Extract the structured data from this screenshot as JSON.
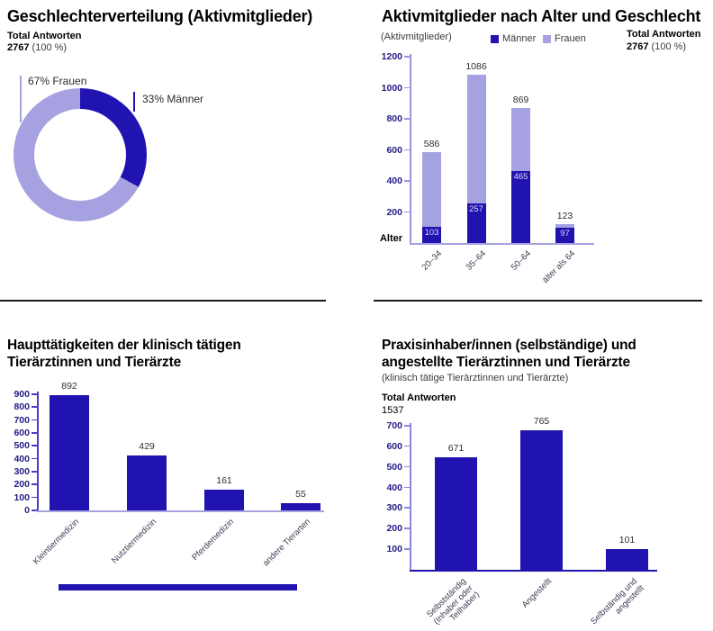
{
  "colors": {
    "primary_dark_blue": "#2013b0",
    "secondary_light_purple": "#a6a1e0",
    "axis_purple": "#8d87dc",
    "axis_blue": "#4a3fc4",
    "tick_label_navy": "#221b87",
    "value_label_gray": "#2e2e2e",
    "divider_black": "#1a1a1a"
  },
  "chart_data": [
    {
      "type": "pie",
      "style": "donut",
      "title": "Geschlechterverteilung (Aktivmitglieder)",
      "total_label": "Total Antworten",
      "total_value": "2767",
      "total_suffix": "(100 %)",
      "start_angle_deg": 0,
      "direction": "clockwise",
      "slices": [
        {
          "name": "Männer",
          "pct": 33,
          "label": "33% Männer",
          "color": "#2013b0"
        },
        {
          "name": "Frauen",
          "pct": 67,
          "label": "67% Frauen",
          "color": "#a6a1e0"
        }
      ]
    },
    {
      "type": "bar",
      "stacked": true,
      "title": "Aktivmitglieder nach Alter und Geschlecht",
      "subtitle": "(Aktivmitglieder)",
      "total_label": "Total Antworten",
      "total_value": "2767",
      "total_suffix": "(100 %)",
      "xlabel": "Alter",
      "legend": [
        {
          "name": "Männer",
          "color": "#2013b0"
        },
        {
          "name": "Frauen",
          "color": "#a6a1e0"
        }
      ],
      "categories": [
        "20–34",
        "35–64",
        "50–64",
        "älter als 64"
      ],
      "series": [
        {
          "name": "Männer",
          "values": [
            103,
            257,
            465,
            97
          ]
        },
        {
          "name": "Frauen",
          "values": [
            483,
            829,
            404,
            26
          ]
        }
      ],
      "totals": [
        586,
        1086,
        869,
        123
      ],
      "ylim": [
        0,
        1200
      ],
      "yticks": [
        200,
        400,
        600,
        800,
        1000,
        1200
      ],
      "grid": false,
      "legend_position": "top"
    },
    {
      "type": "bar",
      "title": "Haupttätigkeiten der klinisch tätigen Tierärztinnen und Tierärzte",
      "title_lines": [
        "Haupttätigkeiten der klinisch tätigen",
        "Tierärztinnen und Tierärzte"
      ],
      "categories": [
        "Kleintiermedizin",
        "Nutztiermedizin",
        "Pferdemedizin",
        "andere Tierarten"
      ],
      "values": [
        892,
        429,
        161,
        55
      ],
      "ylim": [
        0,
        900
      ],
      "yticks": [
        0,
        100,
        200,
        300,
        400,
        500,
        600,
        700,
        800,
        900
      ],
      "grid": false,
      "bar_color": "#2013b0"
    },
    {
      "type": "bar",
      "title": "Praxisinhaber/innen (selbständige) und angestellte Tierärztinnen und Tierärzte",
      "title_lines": [
        "Praxisinhaber/innen (selbständige) und",
        "angestellte Tierärztinnen und Tierärzte"
      ],
      "subtitle": "(klinisch tätige Tierärztinnen und Tierärzte)",
      "total_label": "Total Antworten",
      "total_value": "1537",
      "categories": [
        [
          "Selbstständig",
          "(Inhaber oder",
          "Teilhaber)"
        ],
        [
          "Angestellt"
        ],
        [
          "Selbständig und",
          "angestellt"
        ]
      ],
      "values": [
        671,
        765,
        101
      ],
      "drawn_values": [
        545,
        678,
        101
      ],
      "ylim": [
        0,
        700
      ],
      "yticks": [
        100,
        200,
        300,
        400,
        500,
        600,
        700
      ],
      "grid": false,
      "bar_color": "#2013b0"
    }
  ]
}
